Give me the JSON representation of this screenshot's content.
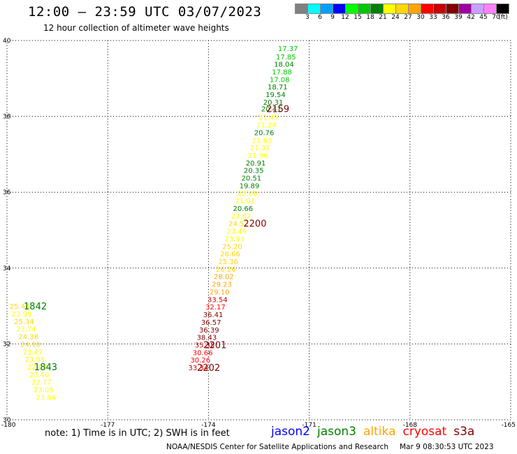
{
  "header": {
    "title": "12:00 – 23:59 UTC 03/07/2023",
    "subtitle": "12 hour collection of altimeter wave heights"
  },
  "colorbar": {
    "swatches": [
      "#808080",
      "#00ffff",
      "#00a0ff",
      "#0000ff",
      "#00ff00",
      "#00c800",
      "#008000",
      "#ffff00",
      "#ffd700",
      "#ffa500",
      "#ff0000",
      "#c80000",
      "#800000",
      "#a000a0",
      "#c8a0ff",
      "#ff80ff",
      "#000000"
    ],
    "labels": [
      "3",
      "6",
      "9",
      "12",
      "15",
      "18",
      "21",
      "24",
      "27",
      "30",
      "33",
      "36",
      "39",
      "42",
      "45",
      "70"
    ],
    "unit": "(ft)"
  },
  "axes": {
    "x_ticks": [
      "-180",
      "-177",
      "-174",
      "-171",
      "-168",
      "-165"
    ],
    "y_ticks": [
      "40",
      "38",
      "36",
      "34",
      "32",
      "30"
    ]
  },
  "observations": [
    {
      "lon": -171.93,
      "lat": 39.8,
      "v": "17.37",
      "c": "#00c800"
    },
    {
      "lon": -171.99,
      "lat": 39.58,
      "v": "17.85",
      "c": "#00c800"
    },
    {
      "lon": -172.05,
      "lat": 39.38,
      "v": "18.04",
      "c": "#008000"
    },
    {
      "lon": -172.11,
      "lat": 39.18,
      "v": "17.88",
      "c": "#00c800"
    },
    {
      "lon": -172.18,
      "lat": 38.98,
      "v": "17.08",
      "c": "#00c800"
    },
    {
      "lon": -172.24,
      "lat": 38.78,
      "v": "18.71",
      "c": "#008000"
    },
    {
      "lon": -172.3,
      "lat": 38.58,
      "v": "19.54",
      "c": "#008000"
    },
    {
      "lon": -172.37,
      "lat": 38.38,
      "v": "20.31",
      "c": "#008000"
    },
    {
      "lon": -172.43,
      "lat": 38.2,
      "v": "20.41",
      "c": "#008000"
    },
    {
      "lon": -172.51,
      "lat": 37.98,
      "v": "21.49",
      "c": "#ffff00"
    },
    {
      "lon": -172.57,
      "lat": 37.78,
      "v": "21.24",
      "c": "#ffff00"
    },
    {
      "lon": -172.64,
      "lat": 37.58,
      "v": "20.76",
      "c": "#008000"
    },
    {
      "lon": -172.7,
      "lat": 37.38,
      "v": "21.63",
      "c": "#ffff00"
    },
    {
      "lon": -172.76,
      "lat": 37.18,
      "v": "21.31",
      "c": "#ffff00"
    },
    {
      "lon": -172.83,
      "lat": 36.98,
      "v": "21.96",
      "c": "#ffff00"
    },
    {
      "lon": -172.89,
      "lat": 36.78,
      "v": "20.91",
      "c": "#008000"
    },
    {
      "lon": -172.95,
      "lat": 36.58,
      "v": "20.35",
      "c": "#008000"
    },
    {
      "lon": -173.02,
      "lat": 36.38,
      "v": "20.51",
      "c": "#008000"
    },
    {
      "lon": -173.08,
      "lat": 36.18,
      "v": "19.89",
      "c": "#008000"
    },
    {
      "lon": -173.14,
      "lat": 35.98,
      "v": "22.66",
      "c": "#ffff00"
    },
    {
      "lon": -173.21,
      "lat": 35.78,
      "v": "21.01",
      "c": "#ffff00"
    },
    {
      "lon": -173.27,
      "lat": 35.58,
      "v": "20.66",
      "c": "#008000"
    },
    {
      "lon": -173.33,
      "lat": 35.38,
      "v": "23.82",
      "c": "#ffff00"
    },
    {
      "lon": -173.4,
      "lat": 35.18,
      "v": "24.52",
      "c": "#ffd700"
    },
    {
      "lon": -173.46,
      "lat": 34.98,
      "v": "23.49",
      "c": "#ffff00"
    },
    {
      "lon": -173.52,
      "lat": 34.78,
      "v": "23.93",
      "c": "#ffff00"
    },
    {
      "lon": -173.59,
      "lat": 34.58,
      "v": "25.20",
      "c": "#ffd700"
    },
    {
      "lon": -173.65,
      "lat": 34.38,
      "v": "26.66",
      "c": "#ffd700"
    },
    {
      "lon": -173.71,
      "lat": 34.18,
      "v": "25.36",
      "c": "#ffd700"
    },
    {
      "lon": -173.78,
      "lat": 33.98,
      "v": "26.26",
      "c": "#ffd700"
    },
    {
      "lon": -173.84,
      "lat": 33.78,
      "v": "28.02",
      "c": "#ffa500"
    },
    {
      "lon": -173.9,
      "lat": 33.58,
      "v": "29.23",
      "c": "#ffa500"
    },
    {
      "lon": -173.97,
      "lat": 33.38,
      "v": "29.10",
      "c": "#ffa500"
    },
    {
      "lon": -174.03,
      "lat": 33.18,
      "v": "33.54",
      "c": "#c80000"
    },
    {
      "lon": -174.09,
      "lat": 32.98,
      "v": "32.17",
      "c": "#ff0000"
    },
    {
      "lon": -174.16,
      "lat": 32.78,
      "v": "36.41",
      "c": "#800000"
    },
    {
      "lon": -174.22,
      "lat": 32.58,
      "v": "36.57",
      "c": "#800000"
    },
    {
      "lon": -174.28,
      "lat": 32.38,
      "v": "36.39",
      "c": "#800000"
    },
    {
      "lon": -174.35,
      "lat": 32.18,
      "v": "38.43",
      "c": "#800000"
    },
    {
      "lon": -174.41,
      "lat": 31.98,
      "v": "35.35",
      "c": "#c80000"
    },
    {
      "lon": -174.47,
      "lat": 31.78,
      "v": "30.66",
      "c": "#ff0000"
    },
    {
      "lon": -174.54,
      "lat": 31.58,
      "v": "30.26",
      "c": "#ff0000"
    },
    {
      "lon": -174.6,
      "lat": 31.38,
      "v": "33.34",
      "c": "#c80000"
    },
    {
      "lon": -179.92,
      "lat": 33.0,
      "v": "25.46",
      "c": "#ffd700"
    },
    {
      "lon": -179.86,
      "lat": 32.8,
      "v": "23.99",
      "c": "#ffff00"
    },
    {
      "lon": -179.79,
      "lat": 32.6,
      "v": "25.34",
      "c": "#ffd700"
    },
    {
      "lon": -179.73,
      "lat": 32.4,
      "v": "23.74",
      "c": "#ffff00"
    },
    {
      "lon": -179.66,
      "lat": 32.2,
      "v": "24.38",
      "c": "#ffd700"
    },
    {
      "lon": -179.6,
      "lat": 32.0,
      "v": "24.10",
      "c": "#ffd700"
    },
    {
      "lon": -179.53,
      "lat": 31.8,
      "v": "23.47",
      "c": "#ffff00"
    },
    {
      "lon": -179.47,
      "lat": 31.6,
      "v": "23.08",
      "c": "#ffff00"
    },
    {
      "lon": -179.4,
      "lat": 31.4,
      "v": "22.08",
      "c": "#ffff00"
    },
    {
      "lon": -179.34,
      "lat": 31.2,
      "v": "23.40",
      "c": "#ffff00"
    },
    {
      "lon": -179.27,
      "lat": 31.0,
      "v": "22.77",
      "c": "#ffff00"
    },
    {
      "lon": -179.21,
      "lat": 30.8,
      "v": "23.05",
      "c": "#ffff00"
    },
    {
      "lon": -179.14,
      "lat": 30.6,
      "v": "23.84",
      "c": "#ffff00"
    }
  ],
  "time_marks": [
    {
      "lon": -172.28,
      "lat": 38.2,
      "t": "2159",
      "c": "#800000"
    },
    {
      "lon": -172.96,
      "lat": 35.18,
      "t": "2200",
      "c": "#800000"
    },
    {
      "lon": -174.15,
      "lat": 31.98,
      "t": "2201",
      "c": "#800000"
    },
    {
      "lon": -174.34,
      "lat": 31.38,
      "t": "2202",
      "c": "#800000"
    },
    {
      "lon": -179.5,
      "lat": 33.0,
      "t": "1842",
      "c": "#008000"
    },
    {
      "lon": -179.19,
      "lat": 31.4,
      "t": "1843",
      "c": "#008000"
    }
  ],
  "footer": {
    "note": "note:  1) Time is in UTC;  2) SWH is in feet",
    "legend": [
      {
        "name": "jason2",
        "color": "#0000ff"
      },
      {
        "name": "jason3",
        "color": "#008000"
      },
      {
        "name": "altika",
        "color": "#ffa500"
      },
      {
        "name": "cryosat",
        "color": "#ff0000"
      },
      {
        "name": "s3a",
        "color": "#800000"
      }
    ],
    "credit": "NOAA/NESDIS Center for Satellite Applications and Research",
    "timestamp": "Mar  9 08:30:53 UTC 2023"
  }
}
